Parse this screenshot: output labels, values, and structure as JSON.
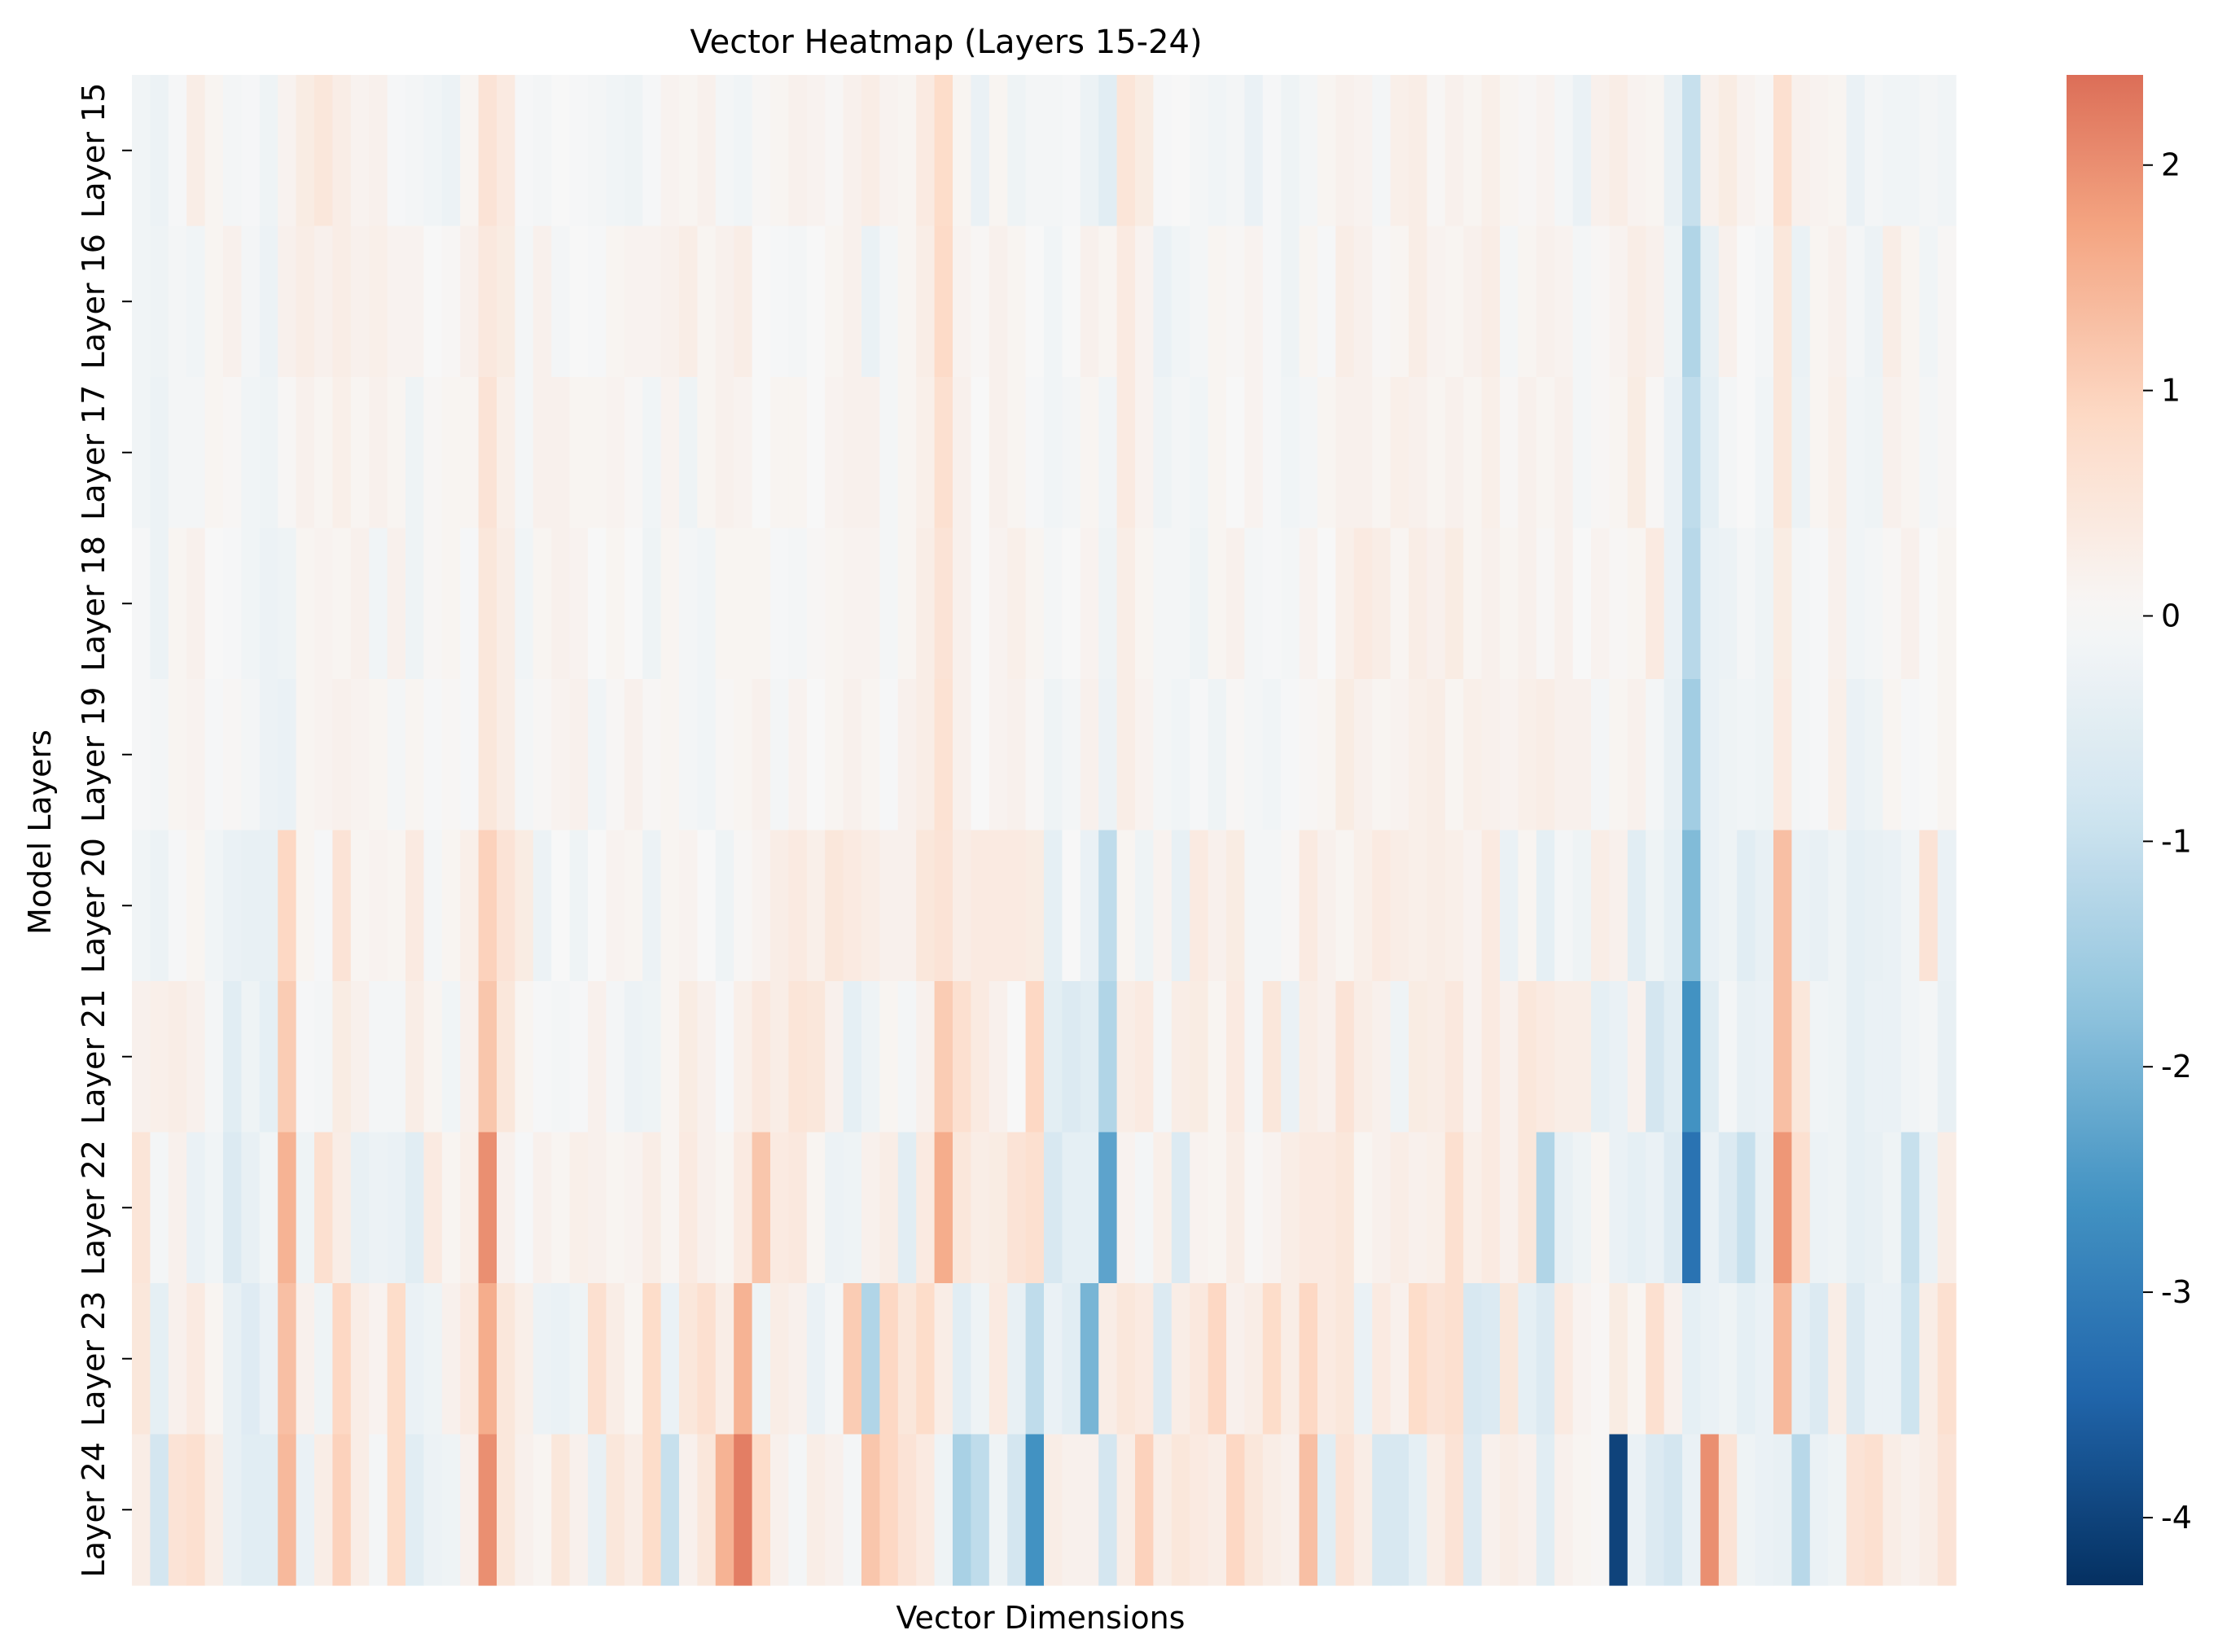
{
  "chart_data": {
    "type": "heatmap",
    "title": "Vector Heatmap (Layers 15-24)",
    "xlabel": "Vector Dimensions",
    "ylabel": "Model Layers",
    "rows": [
      "Layer 15",
      "Layer 16",
      "Layer 17",
      "Layer 18",
      "Layer 19",
      "Layer 20",
      "Layer 21",
      "Layer 22",
      "Layer 23",
      "Layer 24"
    ],
    "n_columns": 100,
    "colormap": "RdBu_r",
    "vmin": -4.3,
    "vmax": 2.4,
    "colorbar_ticks": [
      -4,
      -3,
      -2,
      -1,
      0,
      1,
      2
    ],
    "colorbar_tick_labels": [
      "-4",
      "-3",
      "-2",
      "-1",
      "0",
      "1",
      "2"
    ],
    "values": [
      [
        -0.15,
        -0.25,
        -0.05,
        0.3,
        0.1,
        -0.1,
        -0.05,
        -0.2,
        0.15,
        0.35,
        0.5,
        0.3,
        0.15,
        0.2,
        -0.05,
        -0.1,
        -0.15,
        -0.25,
        0.1,
        0.6,
        0.4,
        -0.05,
        -0.1,
        0.0,
        -0.05,
        -0.1,
        -0.15,
        -0.2,
        -0.05,
        0.15,
        0.1,
        0.2,
        -0.1,
        -0.15,
        0.05,
        0.1,
        0.2,
        0.15,
        0.05,
        0.2,
        0.3,
        0.15,
        0.1,
        0.4,
        0.8,
        0.1,
        -0.3,
        0.1,
        -0.2,
        -0.1,
        -0.1,
        -0.05,
        -0.25,
        -0.5,
        0.55,
        0.35,
        -0.05,
        0.0,
        -0.1,
        -0.15,
        -0.1,
        -0.3,
        -0.05,
        -0.2,
        -0.1,
        0.1,
        0.2,
        0.15,
        -0.1,
        0.25,
        0.3,
        0.05,
        0.2,
        0.1,
        0.25,
        0.1,
        0.05,
        0.15,
        -0.1,
        -0.3,
        0.2,
        0.3,
        0.15,
        0.1,
        -0.35,
        -1.0,
        0.2,
        0.35,
        0.15,
        0.05,
        0.7,
        0.2,
        0.15,
        0.1,
        -0.3,
        -0.1,
        -0.15,
        -0.15,
        -0.1,
        -0.15
      ],
      [
        -0.15,
        -0.2,
        -0.1,
        -0.15,
        0.1,
        0.2,
        -0.1,
        -0.25,
        0.2,
        0.3,
        0.2,
        0.3,
        0.2,
        0.25,
        0.15,
        0.15,
        0.0,
        0.05,
        0.2,
        0.45,
        0.35,
        -0.1,
        0.2,
        -0.1,
        0.0,
        -0.05,
        0.1,
        0.15,
        0.15,
        0.2,
        0.3,
        0.1,
        0.2,
        0.3,
        0.0,
        -0.05,
        -0.1,
        0.0,
        0.1,
        0.2,
        -0.3,
        -0.1,
        0.1,
        0.3,
        0.85,
        0.15,
        0.05,
        0.2,
        0.1,
        0.0,
        -0.15,
        0.0,
        0.2,
        0.1,
        0.4,
        0.15,
        -0.3,
        -0.15,
        -0.1,
        0.1,
        0.05,
        0.15,
        -0.05,
        -0.2,
        0.1,
        -0.05,
        0.3,
        0.2,
        0.05,
        0.1,
        0.3,
        0.15,
        0.1,
        0.2,
        0.3,
        -0.1,
        0.1,
        0.2,
        0.15,
        -0.1,
        0.05,
        0.15,
        0.3,
        0.2,
        -0.2,
        -1.3,
        -0.35,
        0.2,
        0.0,
        -0.1,
        0.5,
        -0.3,
        0.1,
        0.2,
        -0.1,
        -0.25,
        0.3,
        0.1,
        -0.15,
        0.05
      ],
      [
        -0.15,
        -0.25,
        -0.1,
        -0.1,
        0.1,
        0.05,
        -0.15,
        -0.2,
        0.05,
        0.2,
        0.1,
        0.25,
        0.1,
        0.2,
        0.1,
        -0.2,
        0.05,
        0.1,
        0.1,
        0.6,
        0.25,
        -0.1,
        0.2,
        0.2,
        0.1,
        0.1,
        0.15,
        0.05,
        -0.15,
        0.15,
        -0.2,
        0.1,
        0.2,
        0.15,
        0.0,
        0.1,
        0.1,
        0.0,
        0.15,
        0.2,
        0.2,
        -0.1,
        0.1,
        0.25,
        0.7,
        0.2,
        0.0,
        0.2,
        0.1,
        -0.05,
        -0.15,
        -0.1,
        0.1,
        -0.15,
        0.4,
        0.15,
        -0.2,
        -0.1,
        -0.15,
        0.1,
        0.0,
        0.15,
        -0.05,
        -0.15,
        -0.1,
        0.1,
        0.2,
        0.2,
        0.1,
        0.25,
        0.2,
        0.1,
        0.2,
        0.1,
        0.25,
        0.05,
        0.2,
        0.1,
        0.2,
        -0.1,
        0.05,
        0.1,
        0.35,
        0.05,
        -0.3,
        -1.1,
        -0.4,
        -0.1,
        0.0,
        -0.15,
        0.5,
        -0.25,
        0.1,
        0.25,
        -0.15,
        -0.2,
        0.2,
        0.1,
        -0.1,
        0.05
      ],
      [
        -0.05,
        -0.25,
        0.1,
        0.2,
        0.0,
        -0.05,
        -0.15,
        -0.25,
        -0.2,
        0.1,
        0.15,
        0.1,
        0.2,
        -0.15,
        0.2,
        -0.2,
        0.05,
        0.1,
        -0.05,
        0.5,
        0.3,
        -0.15,
        0.1,
        0.2,
        0.15,
        0.0,
        0.1,
        0.0,
        -0.2,
        0.1,
        -0.1,
        -0.15,
        0.1,
        0.1,
        0.1,
        -0.05,
        -0.1,
        0.05,
        0.1,
        0.15,
        0.15,
        -0.1,
        0.1,
        0.3,
        0.6,
        0.2,
        0.0,
        0.15,
        0.25,
        0.1,
        -0.1,
        0.0,
        0.15,
        -0.2,
        0.3,
        0.1,
        -0.1,
        -0.1,
        -0.2,
        0.1,
        0.2,
        -0.1,
        -0.05,
        -0.1,
        0.15,
        0.0,
        0.25,
        0.4,
        0.3,
        0.1,
        0.3,
        0.2,
        0.35,
        0.1,
        0.2,
        0.1,
        0.2,
        0.05,
        0.2,
        0.0,
        0.15,
        0.05,
        0.1,
        0.4,
        -0.3,
        -1.2,
        -0.3,
        -0.25,
        -0.1,
        -0.2,
        0.35,
        -0.1,
        -0.05,
        0.2,
        -0.15,
        -0.1,
        0.05,
        0.2,
        0.0,
        0.1
      ],
      [
        -0.05,
        -0.1,
        0.1,
        0.15,
        -0.05,
        0.05,
        -0.1,
        -0.25,
        -0.3,
        0.1,
        0.15,
        0.2,
        0.15,
        0.1,
        -0.1,
        0.1,
        -0.05,
        0.05,
        -0.05,
        0.5,
        0.3,
        -0.1,
        0.05,
        0.15,
        0.2,
        -0.15,
        0.05,
        0.2,
        0.05,
        0.1,
        -0.1,
        -0.15,
        0.05,
        0.1,
        0.2,
        -0.1,
        0.15,
        0.0,
        0.1,
        0.2,
        0.1,
        -0.05,
        0.2,
        0.3,
        0.65,
        0.2,
        0.0,
        0.15,
        0.2,
        0.05,
        -0.2,
        -0.1,
        0.2,
        -0.25,
        0.3,
        0.15,
        -0.1,
        -0.15,
        -0.05,
        -0.2,
        0.05,
        -0.1,
        -0.15,
        -0.05,
        0.05,
        0.1,
        0.35,
        0.2,
        0.1,
        0.15,
        0.25,
        0.3,
        0.1,
        0.25,
        0.2,
        0.15,
        0.25,
        0.3,
        0.2,
        0.2,
        -0.1,
        0.1,
        0.2,
        -0.1,
        -0.35,
        -1.5,
        -0.3,
        -0.2,
        -0.15,
        -0.2,
        0.4,
        -0.1,
        -0.05,
        0.25,
        -0.3,
        -0.2,
        0.1,
        -0.05,
        0.0,
        0.1
      ],
      [
        -0.15,
        -0.25,
        -0.05,
        0.1,
        -0.15,
        -0.3,
        -0.35,
        -0.35,
        0.9,
        0.1,
        -0.05,
        0.6,
        0.1,
        0.15,
        0.1,
        0.4,
        -0.1,
        0.1,
        0.25,
        1.0,
        0.6,
        0.35,
        -0.25,
        0.0,
        -0.2,
        0.0,
        0.15,
        0.1,
        -0.25,
        0.1,
        0.15,
        0.0,
        -0.2,
        0.05,
        0.15,
        0.3,
        0.4,
        0.25,
        0.5,
        0.4,
        0.3,
        0.2,
        0.2,
        0.5,
        0.6,
        0.3,
        0.4,
        0.4,
        0.4,
        0.35,
        -0.4,
        0.0,
        -0.3,
        -1.1,
        0.1,
        -0.2,
        0.15,
        -0.35,
        0.4,
        0.2,
        0.35,
        -0.1,
        -0.1,
        0.05,
        0.4,
        0.2,
        0.1,
        0.25,
        0.4,
        0.3,
        0.25,
        0.3,
        0.25,
        0.15,
        0.4,
        -0.3,
        0.1,
        -0.4,
        -0.1,
        -0.2,
        0.3,
        0.2,
        -0.5,
        -0.2,
        -0.4,
        -1.9,
        -0.3,
        -0.2,
        -0.5,
        -0.35,
        1.3,
        -0.3,
        -0.35,
        -0.2,
        -0.4,
        -0.35,
        -0.3,
        -0.15,
        0.6,
        -0.3
      ],
      [
        0.2,
        0.25,
        0.3,
        0.2,
        -0.1,
        -0.5,
        -0.2,
        -0.4,
        1.1,
        -0.05,
        -0.1,
        0.35,
        0.2,
        -0.1,
        -0.1,
        0.3,
        0.1,
        -0.15,
        0.2,
        1.2,
        0.5,
        0.1,
        -0.05,
        -0.1,
        -0.05,
        0.2,
        -0.1,
        -0.25,
        -0.2,
        0.1,
        0.35,
        0.2,
        -0.05,
        0.25,
        0.45,
        0.3,
        0.55,
        0.5,
        0.2,
        -0.4,
        -0.2,
        0.1,
        -0.1,
        0.2,
        1.1,
        0.7,
        0.4,
        0.2,
        0.0,
        0.9,
        -0.45,
        -0.6,
        -0.5,
        -1.3,
        0.3,
        0.4,
        -0.1,
        0.3,
        0.35,
        0.1,
        0.4,
        -0.1,
        0.5,
        -0.3,
        0.3,
        0.2,
        0.6,
        0.3,
        0.2,
        -0.2,
        0.35,
        0.3,
        0.45,
        0.15,
        0.4,
        0.2,
        0.5,
        0.4,
        0.3,
        0.3,
        -0.4,
        -0.3,
        0.2,
        -0.8,
        -0.5,
        -2.6,
        -0.5,
        -0.1,
        -0.35,
        -0.3,
        1.3,
        0.5,
        -0.15,
        -0.2,
        -0.4,
        -0.3,
        -0.3,
        -0.15,
        -0.1,
        -0.35
      ],
      [
        0.55,
        -0.1,
        0.2,
        -0.3,
        -0.15,
        -0.6,
        -0.35,
        -0.15,
        1.5,
        -0.2,
        0.7,
        0.3,
        -0.35,
        -0.25,
        -0.3,
        -0.5,
        0.4,
        0.1,
        0.25,
        2.0,
        0.2,
        -0.05,
        0.2,
        0.1,
        0.25,
        0.2,
        0.1,
        0.15,
        0.3,
        0.1,
        0.4,
        0.2,
        0.1,
        0.4,
        1.2,
        0.4,
        0.45,
        0.1,
        -0.25,
        -0.2,
        0.2,
        0.3,
        -0.5,
        0.4,
        1.6,
        0.5,
        0.3,
        0.35,
        0.6,
        0.7,
        -0.7,
        -0.4,
        -0.4,
        -2.3,
        0.15,
        -0.1,
        0.25,
        -0.6,
        0.15,
        0.1,
        0.3,
        0.05,
        0.15,
        0.3,
        0.4,
        0.4,
        0.5,
        0.1,
        0.2,
        0.3,
        0.2,
        0.25,
        0.7,
        0.25,
        0.4,
        0.2,
        0.5,
        -1.3,
        -0.35,
        -0.2,
        0.1,
        -0.3,
        -0.4,
        -0.3,
        -0.6,
        -3.2,
        -0.3,
        -0.6,
        -1.0,
        -0.35,
        1.9,
        0.7,
        -0.25,
        -0.2,
        -0.4,
        -0.35,
        -0.2,
        -1.0,
        -0.3,
        0.3
      ],
      [
        0.5,
        -0.4,
        0.2,
        0.4,
        0.1,
        -0.35,
        -0.55,
        -0.3,
        1.3,
        0.2,
        -0.2,
        0.9,
        0.3,
        0.15,
        0.8,
        -0.3,
        -0.2,
        0.2,
        0.4,
        1.6,
        0.5,
        0.25,
        -0.25,
        -0.3,
        -0.2,
        0.7,
        0.3,
        0.1,
        0.8,
        -0.3,
        0.5,
        0.7,
        0.3,
        1.5,
        -0.2,
        0.3,
        0.2,
        -0.3,
        -0.1,
        1.1,
        -1.3,
        0.9,
        0.5,
        0.8,
        0.3,
        -0.5,
        -0.2,
        0.4,
        -0.35,
        -1.1,
        -0.3,
        -0.5,
        -2.0,
        0.3,
        0.5,
        0.4,
        -0.6,
        0.3,
        0.45,
        0.9,
        0.2,
        0.3,
        0.8,
        0.3,
        0.9,
        0.4,
        0.5,
        -0.3,
        0.4,
        0.2,
        0.8,
        0.6,
        0.7,
        -0.7,
        -0.6,
        0.5,
        -0.4,
        -0.6,
        0.4,
        0.15,
        0.05,
        0.35,
        0.1,
        0.7,
        0.2,
        -0.4,
        -0.3,
        -0.2,
        -0.4,
        -0.3,
        1.4,
        -0.4,
        -0.6,
        0.3,
        -0.6,
        -0.3,
        -0.3,
        -0.9,
        0.3,
        0.7
      ],
      [
        0.3,
        -0.8,
        0.6,
        0.7,
        0.3,
        -0.35,
        -0.5,
        -0.5,
        1.4,
        -0.3,
        0.3,
        1.0,
        0.3,
        -0.1,
        0.8,
        -0.5,
        -0.25,
        -0.2,
        0.2,
        2.0,
        0.5,
        0.2,
        0.1,
        0.5,
        0.2,
        -0.35,
        0.5,
        0.3,
        0.8,
        -1.0,
        0.2,
        0.5,
        1.5,
        2.2,
        0.8,
        0.2,
        -0.1,
        0.3,
        0.2,
        -0.1,
        1.2,
        0.9,
        0.6,
        0.4,
        -0.2,
        -1.4,
        -1.1,
        -0.2,
        -0.8,
        -2.6,
        0.3,
        0.2,
        0.2,
        -0.8,
        0.3,
        1.0,
        0.3,
        0.5,
        0.4,
        0.3,
        0.9,
        0.5,
        0.3,
        0.2,
        1.3,
        -0.5,
        0.6,
        0.3,
        -0.7,
        -0.7,
        -0.4,
        0.3,
        0.6,
        -0.6,
        0.2,
        0.3,
        0.2,
        -0.5,
        0.2,
        0.1,
        0.05,
        -4.0,
        -0.3,
        -0.6,
        -0.8,
        -0.3,
        2.0,
        0.6,
        -0.2,
        -0.3,
        -0.35,
        -1.2,
        -0.3,
        -0.2,
        0.6,
        0.7,
        0.3,
        0.2,
        0.3,
        0.6
      ]
    ]
  }
}
